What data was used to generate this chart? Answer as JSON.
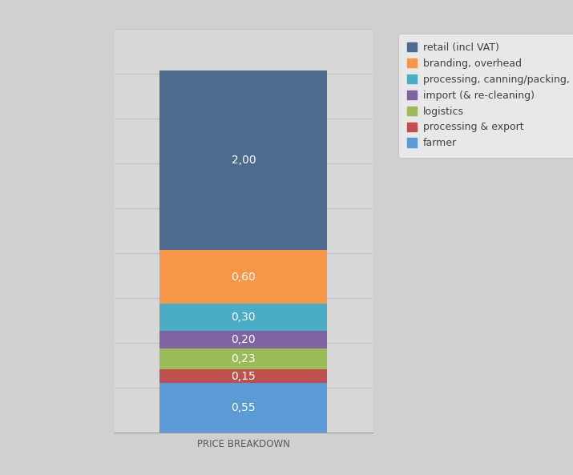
{
  "categories": [
    "PRICE BREAKDOWN"
  ],
  "segments": [
    {
      "label": "farmer",
      "value": 0.55,
      "color": "#5b9bd5"
    },
    {
      "label": "processing & export",
      "value": 0.15,
      "color": "#c0504d"
    },
    {
      "label": "logistics",
      "value": 0.23,
      "color": "#9bbb59"
    },
    {
      "label": "import (& re-cleaning)",
      "value": 0.2,
      "color": "#8064a2"
    },
    {
      "label": "processing, canning/packing, distribution",
      "value": 0.3,
      "color": "#4bacc6"
    },
    {
      "label": "branding, overhead",
      "value": 0.6,
      "color": "#f79646"
    },
    {
      "label": "retail (incl VAT)",
      "value": 2.0,
      "color": "#4f6a8f"
    }
  ],
  "legend_order": [
    "retail (incl VAT)",
    "branding, overhead",
    "processing, canning/packing, distribution",
    "import (& re-cleaning)",
    "logistics",
    "processing & export",
    "farmer"
  ],
  "ylim": [
    0,
    4.5
  ],
  "bg_color": "#d0d0d0",
  "plot_bg_color": "#d8d8d8",
  "label_color": "#ffffff",
  "xlabel_color": "#595959",
  "grid_color": "#c0c0c0",
  "label_fontsize": 10,
  "legend_fontsize": 9,
  "xtick_fontsize": 8.5
}
